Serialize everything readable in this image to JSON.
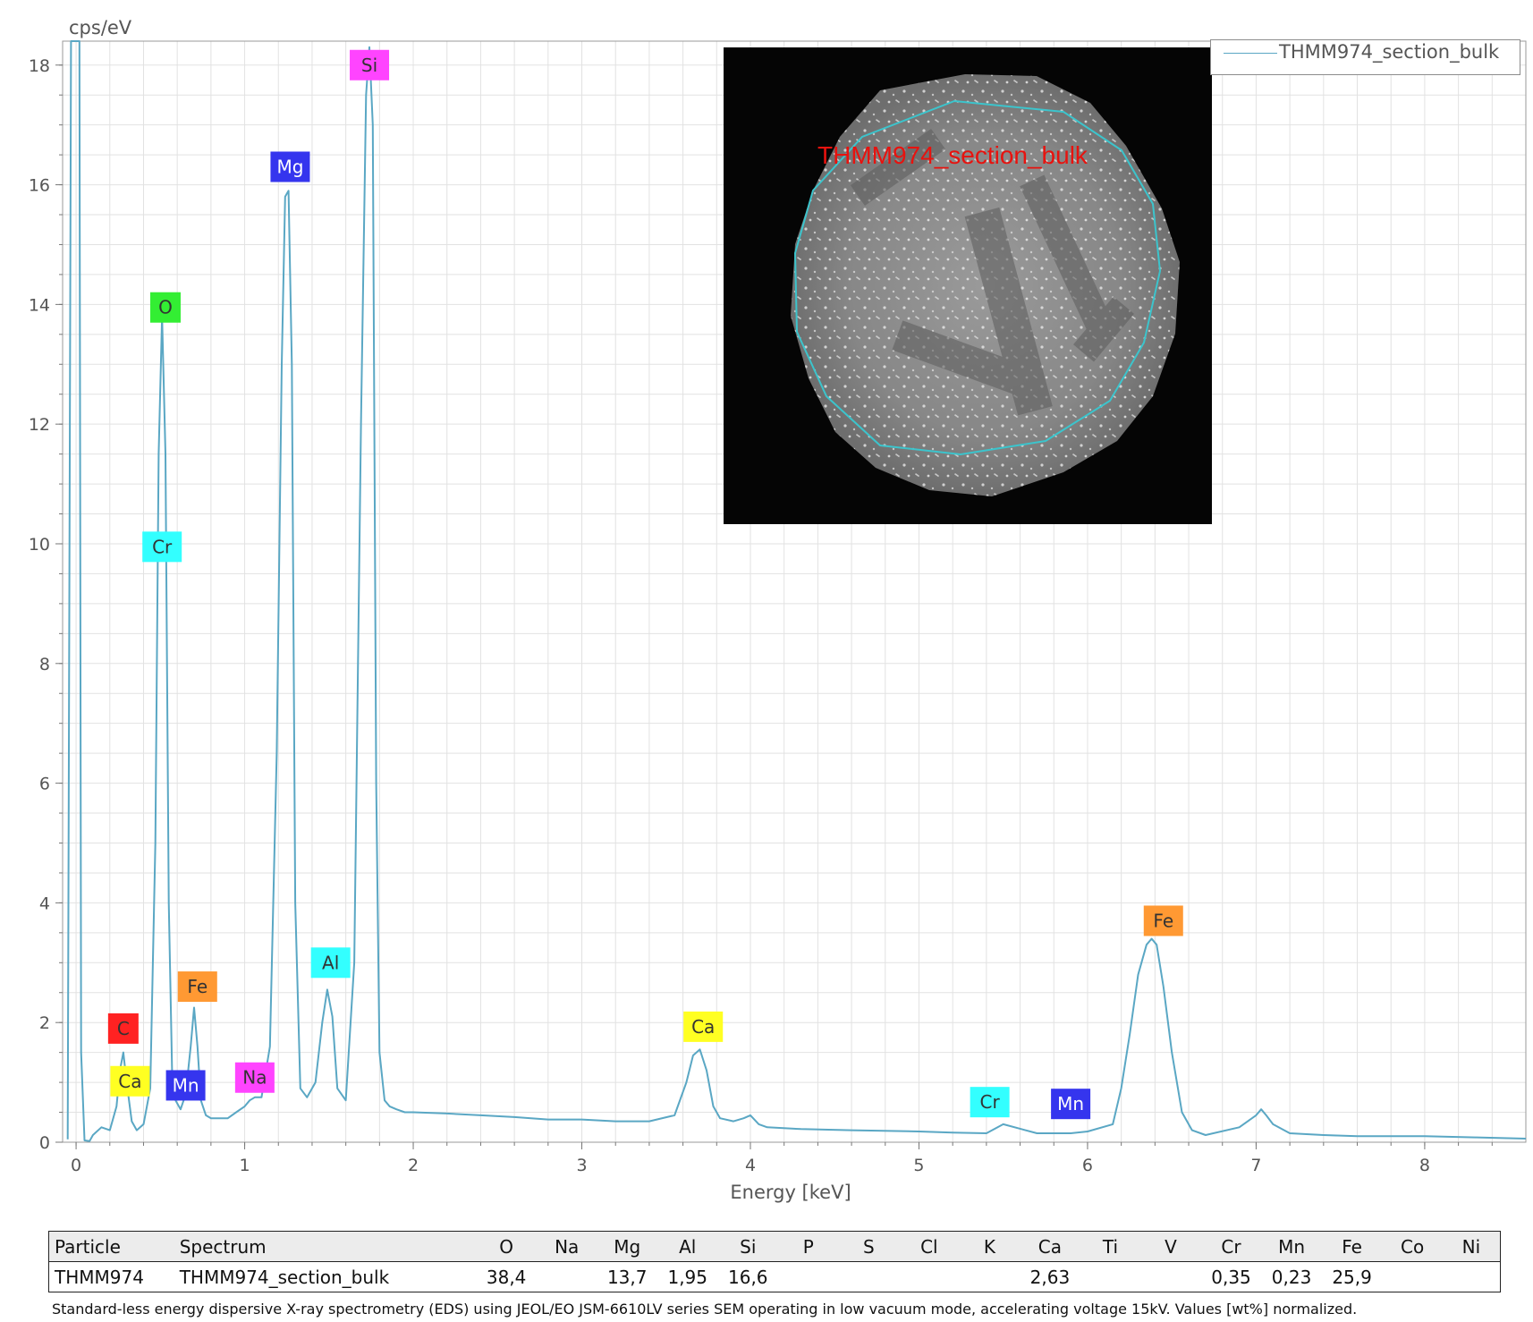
{
  "chart_data": {
    "type": "line",
    "ylabel": "cps/eV",
    "xlabel": "Energy [keV]",
    "xlim": [
      -0.08,
      8.6
    ],
    "ylim": [
      0,
      18.4
    ],
    "x_ticks": [
      0,
      1,
      2,
      3,
      4,
      5,
      6,
      7,
      8
    ],
    "y_ticks": [
      0,
      2,
      4,
      6,
      8,
      10,
      12,
      14,
      16,
      18
    ],
    "grid": true,
    "legend_position": "top-right",
    "series": [
      {
        "name": "THMM974_section_bulk",
        "color": "#5aa7c4",
        "x": [
          -0.05,
          -0.03,
          -0.02,
          -0.01,
          0.0,
          0.01,
          0.02,
          0.03,
          0.05,
          0.08,
          0.1,
          0.15,
          0.2,
          0.24,
          0.26,
          0.28,
          0.3,
          0.33,
          0.36,
          0.4,
          0.44,
          0.47,
          0.49,
          0.51,
          0.53,
          0.55,
          0.57,
          0.59,
          0.62,
          0.65,
          0.68,
          0.7,
          0.72,
          0.74,
          0.77,
          0.8,
          0.85,
          0.9,
          0.95,
          1.0,
          1.03,
          1.06,
          1.1,
          1.15,
          1.19,
          1.22,
          1.24,
          1.26,
          1.28,
          1.3,
          1.33,
          1.37,
          1.42,
          1.46,
          1.49,
          1.52,
          1.55,
          1.6,
          1.65,
          1.69,
          1.72,
          1.74,
          1.76,
          1.78,
          1.8,
          1.83,
          1.86,
          1.9,
          1.95,
          2.0,
          2.2,
          2.4,
          2.6,
          2.8,
          3.0,
          3.2,
          3.4,
          3.55,
          3.62,
          3.66,
          3.7,
          3.74,
          3.78,
          3.82,
          3.9,
          3.96,
          4.0,
          4.05,
          4.1,
          4.3,
          4.6,
          5.0,
          5.2,
          5.4,
          5.5,
          5.7,
          5.9,
          6.0,
          6.15,
          6.2,
          6.25,
          6.3,
          6.35,
          6.38,
          6.41,
          6.45,
          6.5,
          6.56,
          6.62,
          6.7,
          6.9,
          7.0,
          7.03,
          7.06,
          7.1,
          7.2,
          7.4,
          7.6,
          8.0,
          8.3,
          8.6
        ],
        "values": [
          0.05,
          18.4,
          18.4,
          18.4,
          18.4,
          18.4,
          18.4,
          1.5,
          0.03,
          0.02,
          0.12,
          0.25,
          0.2,
          0.6,
          1.2,
          1.5,
          1.0,
          0.35,
          0.2,
          0.3,
          0.9,
          5.0,
          11.5,
          13.8,
          11.5,
          4.0,
          1.1,
          0.7,
          0.55,
          0.8,
          1.6,
          2.25,
          1.6,
          0.7,
          0.45,
          0.4,
          0.4,
          0.4,
          0.5,
          0.6,
          0.7,
          0.75,
          0.75,
          1.6,
          6.5,
          13.0,
          15.8,
          15.9,
          13.0,
          4.0,
          0.9,
          0.75,
          1.0,
          2.0,
          2.55,
          2.1,
          0.9,
          0.7,
          3.0,
          12.0,
          17.5,
          18.3,
          17.0,
          6.0,
          1.5,
          0.7,
          0.6,
          0.55,
          0.5,
          0.5,
          0.48,
          0.45,
          0.42,
          0.38,
          0.38,
          0.35,
          0.35,
          0.45,
          1.0,
          1.45,
          1.55,
          1.2,
          0.6,
          0.4,
          0.35,
          0.4,
          0.45,
          0.3,
          0.25,
          0.22,
          0.2,
          0.18,
          0.16,
          0.15,
          0.3,
          0.15,
          0.15,
          0.18,
          0.3,
          0.9,
          1.8,
          2.8,
          3.3,
          3.4,
          3.3,
          2.6,
          1.5,
          0.5,
          0.2,
          0.12,
          0.25,
          0.45,
          0.55,
          0.45,
          0.3,
          0.15,
          0.12,
          0.1,
          0.1,
          0.08,
          0.06
        ]
      }
    ],
    "annotations": [
      {
        "label": "Si",
        "x": 1.74,
        "y": 18.0,
        "bg": "#ff44ff",
        "fg": "#333333"
      },
      {
        "label": "Mg",
        "x": 1.27,
        "y": 16.3,
        "bg": "#3535ee",
        "fg": "#ffffff"
      },
      {
        "label": "O",
        "x": 0.53,
        "y": 13.95,
        "bg": "#33ee33",
        "fg": "#333333"
      },
      {
        "label": "Cr",
        "x": 0.51,
        "y": 9.95,
        "bg": "#33ffff",
        "fg": "#333333"
      },
      {
        "label": "Fe",
        "x": 0.72,
        "y": 2.6,
        "bg": "#ff9933",
        "fg": "#333333"
      },
      {
        "label": "C",
        "x": 0.28,
        "y": 1.9,
        "bg": "#ff2222",
        "fg": "#333333"
      },
      {
        "label": "Ca",
        "x": 0.32,
        "y": 1.02,
        "bg": "#ffff22",
        "fg": "#333333"
      },
      {
        "label": "Mn",
        "x": 0.65,
        "y": 0.95,
        "bg": "#3535ee",
        "fg": "#ffffff"
      },
      {
        "label": "Na",
        "x": 1.06,
        "y": 1.08,
        "bg": "#ff44ff",
        "fg": "#333333"
      },
      {
        "label": "Al",
        "x": 1.51,
        "y": 3.0,
        "bg": "#33ffff",
        "fg": "#333333"
      },
      {
        "label": "Ca",
        "x": 3.72,
        "y": 1.93,
        "bg": "#ffff22",
        "fg": "#333333"
      },
      {
        "label": "Cr",
        "x": 5.42,
        "y": 0.67,
        "bg": "#33ffff",
        "fg": "#333333"
      },
      {
        "label": "Mn",
        "x": 5.9,
        "y": 0.64,
        "bg": "#3535ee",
        "fg": "#ffffff"
      },
      {
        "label": "Fe",
        "x": 6.45,
        "y": 3.7,
        "bg": "#ff9933",
        "fg": "#333333"
      }
    ]
  },
  "inset": {
    "label": "THMM974_section_bulk",
    "outline_color": "#3cc4cc",
    "label_color": "#e8120e"
  },
  "table": {
    "headers": [
      "Particle",
      "Spectrum",
      "O",
      "Na",
      "Mg",
      "Al",
      "Si",
      "P",
      "S",
      "Cl",
      "K",
      "Ca",
      "Ti",
      "V",
      "Cr",
      "Mn",
      "Fe",
      "Co",
      "Ni"
    ],
    "rows": [
      [
        "THMM974",
        "THMM974_section_bulk",
        "38,4",
        "",
        "13,7",
        "1,95",
        "16,6",
        "",
        "",
        "",
        "",
        "2,63",
        "",
        "",
        "0,35",
        "0,23",
        "25,9",
        "",
        ""
      ]
    ]
  },
  "footnote": "Standard-less energy dispersive X-ray spectrometry (EDS) using JEOL/EO JSM-6610LV series SEM operating in low vacuum mode, accelerating voltage 15kV. Values [wt%] normalized."
}
